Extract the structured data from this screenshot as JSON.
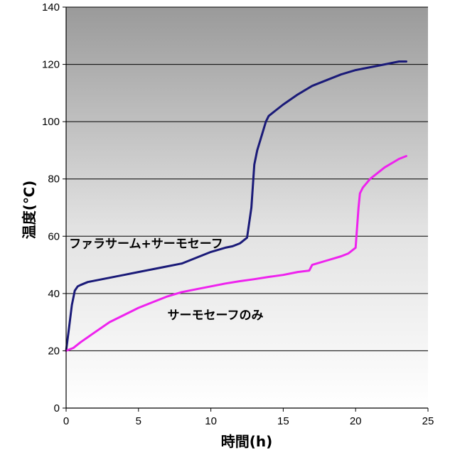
{
  "chart_data": {
    "type": "line",
    "xlabel": "時間(h)",
    "ylabel": "温度(℃)",
    "xlim": [
      0,
      25
    ],
    "ylim": [
      0,
      140
    ],
    "xticks": [
      0,
      5,
      10,
      15,
      20,
      25
    ],
    "yticks": [
      0,
      20,
      40,
      60,
      80,
      100,
      120,
      140
    ],
    "grid": "horizontal",
    "background": "gradient gray (top) to white (bottom)",
    "series": [
      {
        "name": "ファラサーム+サーモセーフ",
        "color": "#1a1a78",
        "x": [
          0,
          0.2,
          0.4,
          0.6,
          0.8,
          1,
          1.5,
          2,
          3,
          4,
          5,
          6,
          7,
          8,
          9,
          10,
          11,
          11.5,
          12,
          12.5,
          12.8,
          13.0,
          13.2,
          13.5,
          13.8,
          14.0,
          14.5,
          15,
          16,
          17,
          18,
          19,
          20,
          21,
          22,
          23,
          23.5
        ],
        "y": [
          20,
          28,
          36,
          41,
          42.5,
          43,
          44,
          44.5,
          45.5,
          46.5,
          47.5,
          48.5,
          49.5,
          50.5,
          52.5,
          54.5,
          56,
          56.5,
          57.5,
          59.5,
          70,
          85,
          90,
          95,
          100,
          102,
          104,
          106,
          109.5,
          112.5,
          114.5,
          116.5,
          118,
          119,
          120,
          121,
          121
        ]
      },
      {
        "name": "サーモセーフのみ",
        "color": "#ee22ee",
        "x": [
          0,
          0.5,
          1,
          2,
          3,
          4,
          5,
          6,
          7,
          8,
          9,
          10,
          11,
          12,
          13,
          14,
          15,
          16,
          16.8,
          17,
          18,
          19,
          19.5,
          20.0,
          20.2,
          20.3,
          20.5,
          21,
          22,
          23,
          23.5
        ],
        "y": [
          20,
          21,
          23,
          26.5,
          30,
          32.5,
          35,
          37,
          39,
          40.5,
          41.5,
          42.5,
          43.5,
          44.3,
          45,
          45.8,
          46.5,
          47.5,
          48,
          50,
          51.5,
          53,
          54,
          56,
          70,
          75,
          77,
          80,
          84,
          87,
          88
        ]
      }
    ],
    "annotations": [
      {
        "text": "ファラサーム+サーモセーフ",
        "x": 0.2,
        "y": 56
      },
      {
        "text": "サーモセーフのみ",
        "x": 7,
        "y": 31
      }
    ]
  }
}
